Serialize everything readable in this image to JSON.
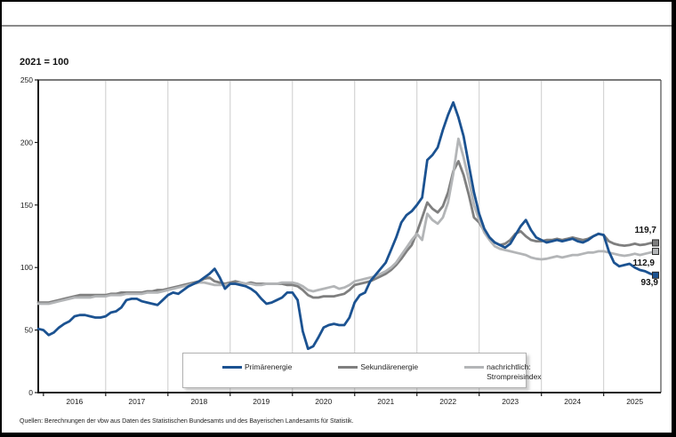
{
  "index_base_label": "2021 = 100",
  "source_note": "Quellen: Berechnungen der vbw aus Daten des Statistischen Bundesamts und des Bayerischen Landesamts für Statistik.",
  "colors": {
    "primaerenergie": "#1b5291",
    "sekundaerenergie": "#7f7f7f",
    "strompreisindex": "#b3b5b7",
    "grid": "#cccccc",
    "axis": "#1a1a1a",
    "frame": "#4d4d4d"
  },
  "legend": {
    "items": [
      {
        "label": "Primärenergie"
      },
      {
        "label": "Sekundärenergie"
      },
      {
        "label": "nachrichtlich:",
        "label2": "Strompreisindex"
      }
    ]
  },
  "end_labels": {
    "sekundaerenergie": "119,7",
    "strompreisindex": "112,9",
    "primaerenergie": "93,9"
  },
  "chart_data": {
    "type": "line",
    "title": "",
    "index_note": "2021 = 100",
    "x_unit": "monthly",
    "x_range": [
      "2015-12",
      "2025-11"
    ],
    "x_tick_labels": [
      "2016",
      "2017",
      "2018",
      "2019",
      "2020",
      "2021",
      "2022",
      "2023",
      "2024",
      "2025"
    ],
    "ylim": [
      0,
      250
    ],
    "yticks": [
      0,
      50,
      100,
      150,
      200,
      250
    ],
    "grid": "vertical-yearly",
    "legend_position": "bottom-center",
    "series": [
      {
        "name": "Primärenergie",
        "color": "#1b5291",
        "end_value": 93.9,
        "values": [
          51,
          50,
          46,
          48,
          52,
          55,
          57,
          61,
          62,
          62,
          61,
          60,
          60,
          61,
          64,
          65,
          68,
          74,
          75,
          75,
          73,
          72,
          71,
          70,
          74,
          78,
          80,
          79,
          82,
          85,
          87,
          89,
          92,
          95,
          99,
          92,
          83,
          87,
          87,
          86,
          85,
          83,
          80,
          75,
          71,
          72,
          74,
          76,
          80,
          80,
          74,
          49,
          35,
          37,
          44,
          52,
          54,
          55,
          54,
          54,
          60,
          72,
          78,
          80,
          89,
          94,
          99,
          104,
          114,
          124,
          136,
          142,
          145,
          150,
          156,
          186,
          190,
          196,
          210,
          222,
          232,
          220,
          205,
          182,
          160,
          143,
          131,
          124,
          120,
          118,
          116,
          119,
          126,
          133,
          138,
          130,
          124,
          122,
          120,
          121,
          122,
          121,
          122,
          123,
          121,
          120,
          122,
          125,
          127,
          126,
          113,
          104,
          101,
          102,
          103,
          100,
          98,
          97,
          95,
          93.9
        ]
      },
      {
        "name": "Sekundärenergie",
        "color": "#7f7f7f",
        "end_value": 119.7,
        "values": [
          72,
          72,
          72,
          73,
          74,
          75,
          76,
          77,
          78,
          78,
          78,
          78,
          78,
          78,
          79,
          79,
          80,
          80,
          80,
          80,
          80,
          81,
          81,
          82,
          82,
          83,
          84,
          85,
          86,
          87,
          88,
          89,
          91,
          92,
          89,
          88,
          87,
          88,
          89,
          88,
          87,
          88,
          87,
          87,
          87,
          87,
          87,
          87,
          86,
          86,
          85,
          82,
          78,
          76,
          76,
          77,
          77,
          77,
          78,
          79,
          82,
          86,
          87,
          88,
          89,
          91,
          93,
          95,
          98,
          102,
          107,
          113,
          118,
          128,
          140,
          152,
          147,
          144,
          149,
          160,
          177,
          185,
          174,
          158,
          140,
          136,
          129,
          124,
          120,
          118,
          119,
          122,
          127,
          129,
          125,
          122,
          121,
          121,
          122,
          122,
          123,
          122,
          123,
          124,
          123,
          122,
          123,
          125,
          127,
          126,
          121,
          119,
          118,
          117.5,
          118,
          119,
          118,
          118.5,
          119.5,
          119.7
        ]
      },
      {
        "name": "nachrichtlich: Strompreisindex",
        "color": "#b3b5b7",
        "end_value": 112.9,
        "values": [
          71,
          71,
          71,
          72,
          73,
          74,
          75,
          76,
          76,
          76,
          76,
          77,
          77,
          77,
          78,
          78,
          78,
          79,
          79,
          79,
          79,
          80,
          80,
          80,
          81,
          82,
          83,
          84,
          85,
          86,
          87,
          88,
          88,
          87,
          86,
          86,
          86,
          87,
          87,
          88,
          87,
          87,
          86,
          86,
          87,
          87,
          87,
          88,
          88,
          88,
          87,
          85,
          82,
          81,
          82,
          83,
          84,
          85,
          83,
          84,
          86,
          89,
          90,
          91,
          92,
          93,
          95,
          97,
          100,
          104,
          110,
          116,
          122,
          127,
          122,
          143,
          138,
          135,
          140,
          152,
          175,
          203,
          188,
          170,
          150,
          138,
          128,
          122,
          117,
          115,
          114,
          113,
          112,
          111,
          110,
          108,
          107,
          106.5,
          107,
          108,
          109,
          108,
          109,
          110,
          110,
          111,
          112,
          112,
          113,
          113,
          112,
          111,
          110,
          109.4,
          110,
          111,
          110,
          111,
          112,
          112.9
        ]
      }
    ]
  }
}
